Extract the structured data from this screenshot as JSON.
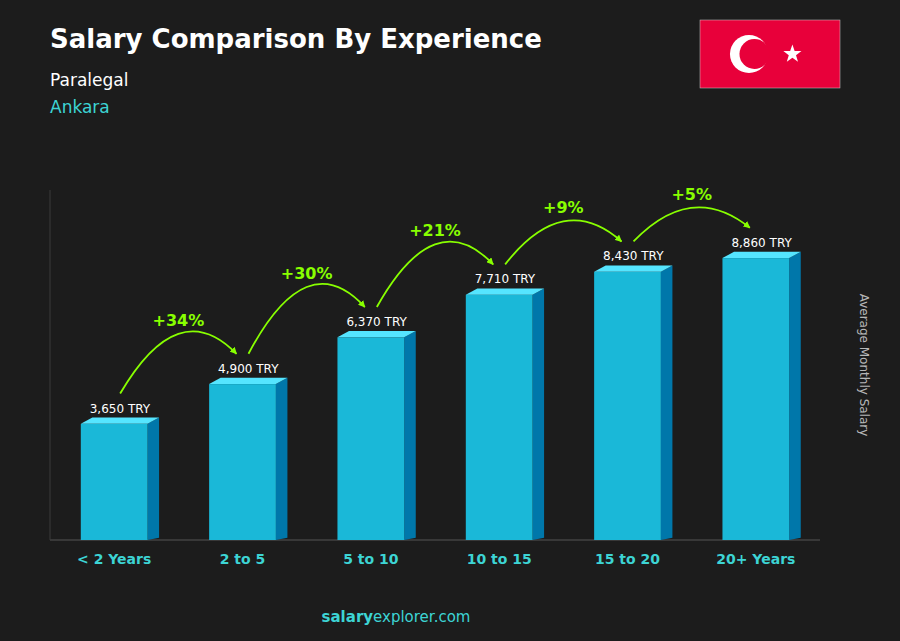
{
  "chart_data": {
    "type": "bar",
    "title": "Salary Comparison By Experience",
    "subtitle": [
      "Paralegal",
      "Ankara"
    ],
    "categories": [
      "< 2 Years",
      "2 to 5",
      "5 to 10",
      "10 to 15",
      "15 to 20",
      "20+ Years"
    ],
    "values": [
      3650,
      4900,
      6370,
      7710,
      8430,
      8860
    ],
    "value_labels": [
      "3,650 TRY",
      "4,900 TRY",
      "6,370 TRY",
      "7,710 TRY",
      "8,430 TRY",
      "8,860 TRY"
    ],
    "data_labels": true,
    "annotations": [
      "+34%",
      "+30%",
      "+21%",
      "+9%",
      "+5%"
    ],
    "ylabel": "Average Monthly Salary",
    "footer": [
      "salary",
      "explorer.com"
    ],
    "color": "#1ab8d8",
    "ylim": [
      0,
      11000
    ],
    "tick_labels": "x",
    "grid": false
  }
}
